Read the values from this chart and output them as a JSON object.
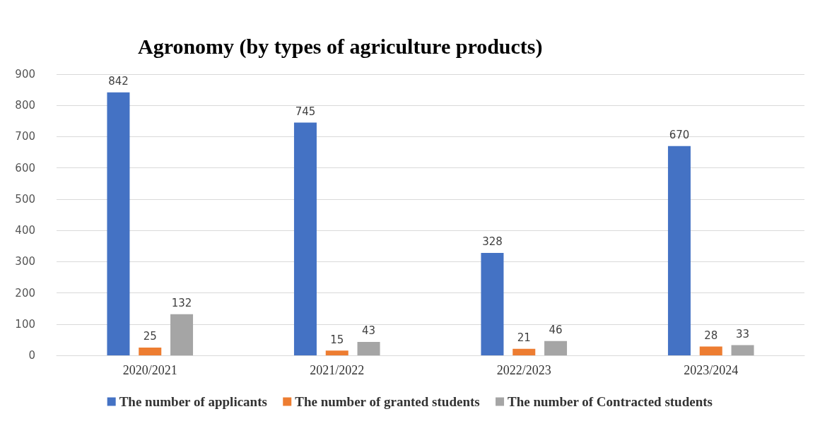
{
  "chart_data": {
    "type": "bar",
    "title": "Agronomy (by types of agriculture products)",
    "categories": [
      "2020/2021",
      "2021/2022",
      "2022/2023",
      "2023/2024"
    ],
    "series": [
      {
        "name": "The number of applicants",
        "color": "#4472c4",
        "values": [
          842,
          745,
          328,
          670
        ]
      },
      {
        "name": "The number of granted students",
        "color": "#ed7d31",
        "values": [
          25,
          15,
          21,
          28
        ]
      },
      {
        "name": "The number of Contracted students",
        "color": "#a5a5a5",
        "values": [
          132,
          43,
          46,
          33
        ]
      }
    ],
    "ylim": [
      0,
      900
    ],
    "yticks": [
      0,
      100,
      200,
      300,
      400,
      500,
      600,
      700,
      800,
      900
    ],
    "grid": "y",
    "legend": "bottom",
    "data_labels": true
  }
}
